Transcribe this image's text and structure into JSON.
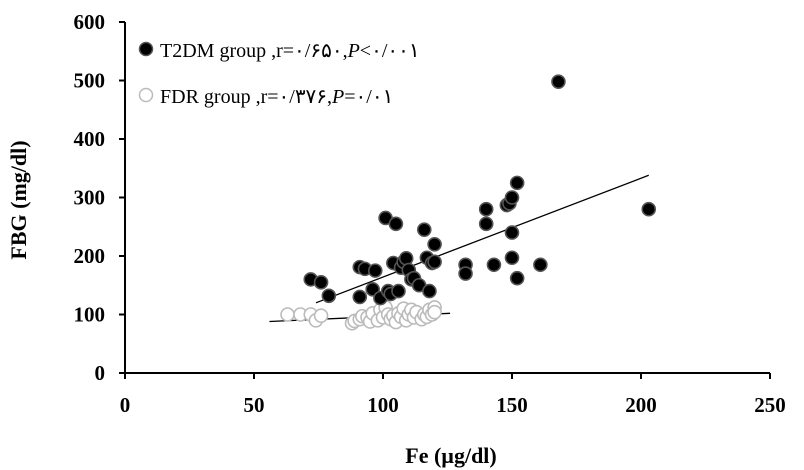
{
  "chart_data": {
    "type": "scatter",
    "title": "",
    "xlabel": "Fe (µg/dl)",
    "ylabel": "FBG (mg/dl)",
    "xlim": [
      0,
      250
    ],
    "ylim": [
      0,
      600
    ],
    "xticks": [
      0,
      50,
      100,
      150,
      200,
      250
    ],
    "yticks": [
      0,
      100,
      200,
      300,
      400,
      500,
      600
    ],
    "grid": false,
    "legend_position": "top-left",
    "series": [
      {
        "name": "T2DM group",
        "stat_text": ",r=۰/۶۵۰,",
        "p_symbol": "P",
        "p_text": "<۰/۰۰۱",
        "marker_fill": "#000000",
        "marker_stroke": "#555555",
        "trendline": {
          "x": [
            74,
            203
          ],
          "y": [
            120,
            338
          ]
        },
        "points": [
          [
            72,
            160
          ],
          [
            76,
            155
          ],
          [
            79,
            132
          ],
          [
            91,
            181
          ],
          [
            91,
            130
          ],
          [
            93,
            178
          ],
          [
            96,
            143
          ],
          [
            97,
            175
          ],
          [
            99,
            128
          ],
          [
            101,
            265
          ],
          [
            102,
            140
          ],
          [
            103,
            135
          ],
          [
            104,
            188
          ],
          [
            105,
            255
          ],
          [
            106,
            140
          ],
          [
            107,
            180
          ],
          [
            108,
            190
          ],
          [
            109,
            196
          ],
          [
            110,
            176
          ],
          [
            111,
            160
          ],
          [
            112,
            162
          ],
          [
            114,
            150
          ],
          [
            116,
            245
          ],
          [
            117,
            197
          ],
          [
            118,
            140
          ],
          [
            119,
            188
          ],
          [
            120,
            220
          ],
          [
            120,
            190
          ],
          [
            132,
            185
          ],
          [
            132,
            170
          ],
          [
            140,
            280
          ],
          [
            140,
            255
          ],
          [
            143,
            185
          ],
          [
            148,
            287
          ],
          [
            149,
            290
          ],
          [
            150,
            300
          ],
          [
            150,
            240
          ],
          [
            150,
            197
          ],
          [
            152,
            325
          ],
          [
            152,
            162
          ],
          [
            161,
            185
          ],
          [
            168,
            498
          ],
          [
            203,
            280
          ]
        ]
      },
      {
        "name": "FDR group",
        "stat_text": ",r=۰/۳۷۶,",
        "p_symbol": "P",
        "p_text": "=۰/۰۱",
        "marker_fill": "#ffffff",
        "marker_stroke": "#bbbbbb",
        "trendline": {
          "x": [
            56,
            126
          ],
          "y": [
            88,
            102
          ]
        },
        "points": [
          [
            63,
            100
          ],
          [
            68,
            100
          ],
          [
            72,
            100
          ],
          [
            74,
            90
          ],
          [
            76,
            98
          ],
          [
            88,
            85
          ],
          [
            89,
            89
          ],
          [
            91,
            92
          ],
          [
            92,
            97
          ],
          [
            94,
            95
          ],
          [
            95,
            88
          ],
          [
            96,
            102
          ],
          [
            98,
            90
          ],
          [
            99,
            108
          ],
          [
            100,
            95
          ],
          [
            101,
            112
          ],
          [
            102,
            100
          ],
          [
            103,
            92
          ],
          [
            104,
            98
          ],
          [
            105,
            87
          ],
          [
            106,
            102
          ],
          [
            107,
            96
          ],
          [
            108,
            110
          ],
          [
            109,
            90
          ],
          [
            110,
            100
          ],
          [
            111,
            108
          ],
          [
            112,
            95
          ],
          [
            113,
            104
          ],
          [
            115,
            92
          ],
          [
            116,
            100
          ],
          [
            117,
            96
          ],
          [
            118,
            108
          ],
          [
            119,
            100
          ],
          [
            120,
            112
          ],
          [
            120,
            104
          ]
        ]
      }
    ]
  }
}
